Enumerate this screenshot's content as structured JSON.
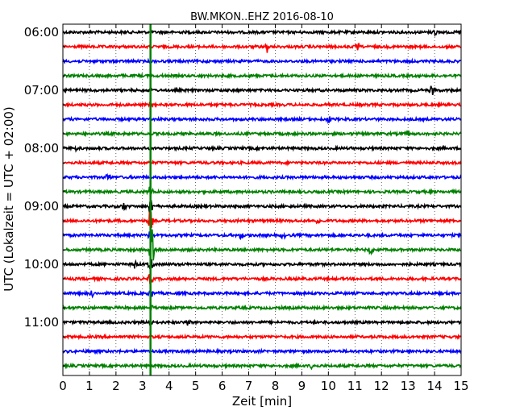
{
  "chart_data": {
    "type": "line",
    "title": "BW.MKON..EHZ 2016-08-10",
    "xlabel": "Zeit  [min]",
    "ylabel": "UTC (Lokalzeit = UTC + 02:00)",
    "xlim": [
      0,
      15
    ],
    "x_ticks": [
      "0",
      "1",
      "2",
      "3",
      "4",
      "5",
      "6",
      "7",
      "8",
      "9",
      "10",
      "11",
      "12",
      "13",
      "14",
      "15"
    ],
    "y_tick_labels": [
      "06:00",
      "07:00",
      "08:00",
      "09:00",
      "10:00",
      "11:00"
    ],
    "grid": true,
    "trace_interval_minutes": 15,
    "trace_colors": [
      "#000000",
      "#ff0000",
      "#0000ff",
      "#008000"
    ],
    "traces": [
      {
        "start": "06:00",
        "color": "#000000",
        "events": [
          {
            "t": 14.0,
            "amp": 0.3
          }
        ]
      },
      {
        "start": "06:15",
        "color": "#ff0000",
        "events": [
          {
            "t": 7.7,
            "amp": 0.4
          },
          {
            "t": 11.1,
            "amp": 0.3
          }
        ]
      },
      {
        "start": "06:30",
        "color": "#0000ff",
        "events": []
      },
      {
        "start": "06:45",
        "color": "#008000",
        "events": []
      },
      {
        "start": "07:00",
        "color": "#000000",
        "events": [
          {
            "t": 13.9,
            "amp": 0.4
          }
        ]
      },
      {
        "start": "07:15",
        "color": "#ff0000",
        "events": []
      },
      {
        "start": "07:30",
        "color": "#0000ff",
        "events": [
          {
            "t": 10.0,
            "amp": 0.4
          }
        ]
      },
      {
        "start": "07:45",
        "color": "#008000",
        "events": [
          {
            "t": 13.0,
            "amp": 0.3
          }
        ]
      },
      {
        "start": "08:00",
        "color": "#000000",
        "events": [
          {
            "t": 0.5,
            "amp": 0.3
          }
        ]
      },
      {
        "start": "08:15",
        "color": "#ff0000",
        "events": []
      },
      {
        "start": "08:30",
        "color": "#0000ff",
        "events": [
          {
            "t": 1.7,
            "amp": 0.5
          }
        ]
      },
      {
        "start": "08:45",
        "color": "#008000",
        "events": [
          {
            "t": 3.3,
            "amp": 0.5
          }
        ]
      },
      {
        "start": "09:00",
        "color": "#000000",
        "events": [
          {
            "t": 2.3,
            "amp": 0.4
          },
          {
            "t": 3.3,
            "amp": 0.8
          }
        ]
      },
      {
        "start": "09:15",
        "color": "#ff0000",
        "events": [
          {
            "t": 3.3,
            "amp": 0.8
          },
          {
            "t": 9.6,
            "amp": 0.4
          }
        ]
      },
      {
        "start": "09:30",
        "color": "#0000ff",
        "events": [
          {
            "t": 3.3,
            "amp": 0.8
          },
          {
            "t": 6.7,
            "amp": 0.4
          },
          {
            "t": 8.3,
            "amp": 0.3
          }
        ]
      },
      {
        "start": "09:45",
        "color": "#008000",
        "events": [
          {
            "t": 3.35,
            "amp": 1.6
          },
          {
            "t": 11.6,
            "amp": 0.4
          }
        ]
      },
      {
        "start": "10:00",
        "color": "#000000",
        "events": [
          {
            "t": 3.3,
            "amp": 0.6
          },
          {
            "t": 2.7,
            "amp": 0.3
          }
        ]
      },
      {
        "start": "10:15",
        "color": "#ff0000",
        "events": [
          {
            "t": 3.3,
            "amp": 0.5
          }
        ]
      },
      {
        "start": "10:30",
        "color": "#0000ff",
        "events": [
          {
            "t": 1.1,
            "amp": 0.3
          },
          {
            "t": 3.3,
            "amp": 0.5
          }
        ]
      },
      {
        "start": "10:45",
        "color": "#008000",
        "events": [
          {
            "t": 3.3,
            "amp": 0.4
          }
        ]
      },
      {
        "start": "11:00",
        "color": "#000000",
        "events": [
          {
            "t": 3.3,
            "amp": 0.4
          },
          {
            "t": 4.7,
            "amp": 0.3
          }
        ]
      },
      {
        "start": "11:15",
        "color": "#ff0000",
        "events": []
      },
      {
        "start": "11:30",
        "color": "#0000ff",
        "events": []
      },
      {
        "start": "11:45",
        "color": "#008000",
        "events": [
          {
            "t": 9.4,
            "amp": 0.3
          }
        ]
      }
    ],
    "marker": {
      "t": 3.3,
      "color": "#008000"
    }
  }
}
